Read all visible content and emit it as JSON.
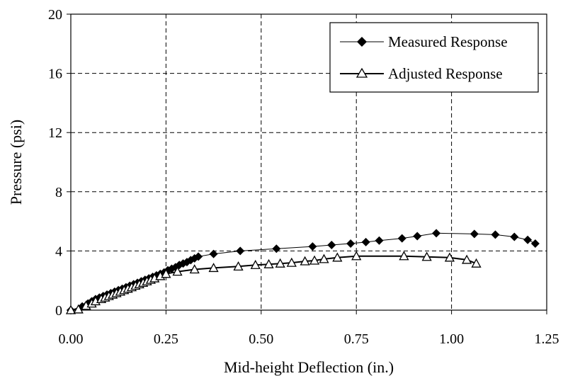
{
  "chart_data": {
    "type": "line",
    "xlabel": "Mid-height Deflection (in.)",
    "ylabel": "Pressure (psi)",
    "xlim": [
      0,
      1.25
    ],
    "ylim": [
      0,
      20
    ],
    "x_ticks": [
      "0.00",
      "0.25",
      "0.50",
      "0.75",
      "1.00",
      "1.25"
    ],
    "y_ticks": [
      "0",
      "4",
      "8",
      "12",
      "16",
      "20"
    ],
    "grid": true,
    "legend_position": "top-right",
    "series": [
      {
        "name": "Measured Response",
        "marker": "diamond",
        "color": "#000000",
        "points": [
          [
            0.0,
            0.0
          ],
          [
            0.03,
            0.25
          ],
          [
            0.045,
            0.45
          ],
          [
            0.055,
            0.6
          ],
          [
            0.065,
            0.75
          ],
          [
            0.075,
            0.85
          ],
          [
            0.085,
            0.95
          ],
          [
            0.095,
            1.05
          ],
          [
            0.105,
            1.15
          ],
          [
            0.115,
            1.25
          ],
          [
            0.125,
            1.35
          ],
          [
            0.135,
            1.45
          ],
          [
            0.145,
            1.55
          ],
          [
            0.155,
            1.65
          ],
          [
            0.165,
            1.75
          ],
          [
            0.175,
            1.85
          ],
          [
            0.185,
            1.95
          ],
          [
            0.195,
            2.05
          ],
          [
            0.205,
            2.15
          ],
          [
            0.215,
            2.25
          ],
          [
            0.225,
            2.35
          ],
          [
            0.235,
            2.45
          ],
          [
            0.245,
            2.55
          ],
          [
            0.255,
            2.7
          ],
          [
            0.265,
            2.8
          ],
          [
            0.275,
            2.9
          ],
          [
            0.285,
            3.05
          ],
          [
            0.295,
            3.15
          ],
          [
            0.305,
            3.25
          ],
          [
            0.315,
            3.38
          ],
          [
            0.325,
            3.5
          ],
          [
            0.335,
            3.62
          ],
          [
            0.375,
            3.8
          ],
          [
            0.445,
            4.0
          ],
          [
            0.54,
            4.15
          ],
          [
            0.635,
            4.3
          ],
          [
            0.685,
            4.4
          ],
          [
            0.735,
            4.5
          ],
          [
            0.775,
            4.6
          ],
          [
            0.81,
            4.7
          ],
          [
            0.87,
            4.85
          ],
          [
            0.91,
            5.0
          ],
          [
            0.96,
            5.2
          ],
          [
            1.06,
            5.15
          ],
          [
            1.115,
            5.1
          ],
          [
            1.165,
            4.95
          ],
          [
            1.2,
            4.75
          ],
          [
            1.22,
            4.5
          ]
        ]
      },
      {
        "name": "Adjusted Response",
        "marker": "triangle",
        "color": "#000000",
        "points": [
          [
            0.0,
            0.0
          ],
          [
            0.02,
            0.05
          ],
          [
            0.04,
            0.3
          ],
          [
            0.055,
            0.45
          ],
          [
            0.065,
            0.6
          ],
          [
            0.08,
            0.75
          ],
          [
            0.09,
            0.85
          ],
          [
            0.1,
            0.95
          ],
          [
            0.11,
            1.05
          ],
          [
            0.12,
            1.15
          ],
          [
            0.13,
            1.25
          ],
          [
            0.14,
            1.35
          ],
          [
            0.15,
            1.45
          ],
          [
            0.16,
            1.55
          ],
          [
            0.17,
            1.65
          ],
          [
            0.18,
            1.75
          ],
          [
            0.19,
            1.85
          ],
          [
            0.2,
            1.95
          ],
          [
            0.21,
            2.05
          ],
          [
            0.22,
            2.15
          ],
          [
            0.235,
            2.3
          ],
          [
            0.25,
            2.45
          ],
          [
            0.28,
            2.6
          ],
          [
            0.325,
            2.75
          ],
          [
            0.375,
            2.85
          ],
          [
            0.44,
            2.95
          ],
          [
            0.485,
            3.05
          ],
          [
            0.52,
            3.1
          ],
          [
            0.55,
            3.15
          ],
          [
            0.58,
            3.2
          ],
          [
            0.615,
            3.3
          ],
          [
            0.64,
            3.35
          ],
          [
            0.665,
            3.45
          ],
          [
            0.7,
            3.55
          ],
          [
            0.75,
            3.65
          ],
          [
            0.875,
            3.65
          ],
          [
            0.935,
            3.6
          ],
          [
            0.995,
            3.55
          ],
          [
            1.04,
            3.4
          ],
          [
            1.065,
            3.15
          ]
        ]
      }
    ]
  }
}
